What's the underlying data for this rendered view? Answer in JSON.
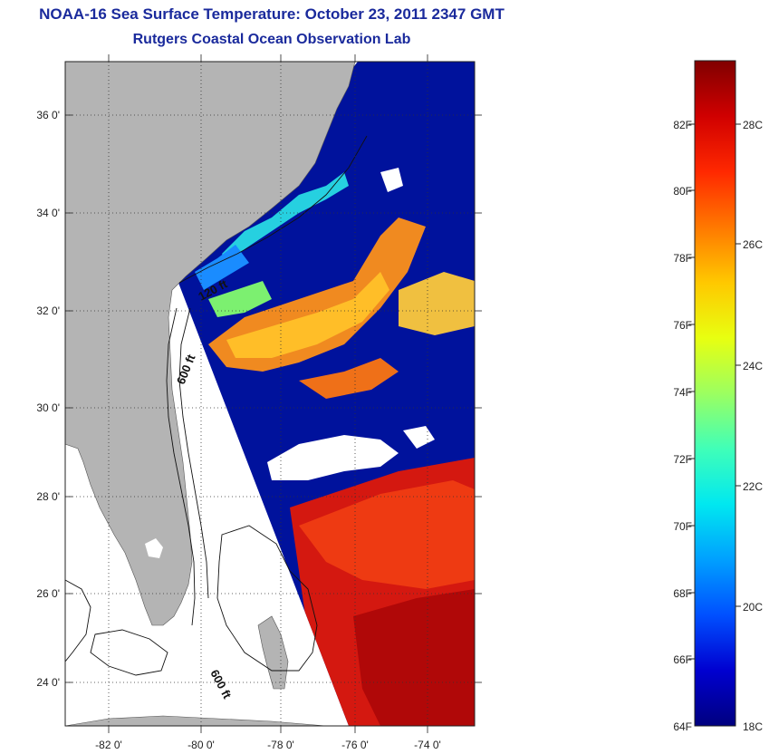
{
  "header": {
    "title": "NOAA-16 Sea Surface Temperature:  October 23, 2011 2347 GMT",
    "subtitle": "Rutgers Coastal Ocean Observation Lab"
  },
  "map": {
    "lon_range": [
      -83.0,
      -72.6
    ],
    "lat_range": [
      23.0,
      37.2
    ],
    "lon_ticks": [
      "-82 0'",
      "-80 0'",
      "-78 0'",
      "-76 0'",
      "-74 0'"
    ],
    "lat_ticks": [
      "36 0'",
      "34 0'",
      "32 0'",
      "30 0'",
      "28 0'",
      "26 0'",
      "24 0'"
    ],
    "contour_labels": [
      "120 ft",
      "600 ft",
      "600 ft"
    ],
    "colors": {
      "land": "#b4b4b4",
      "no_data": "#ffffff",
      "cold_water": "#00129c",
      "warm_water": "#c80c0c",
      "grid": "#333333"
    }
  },
  "colorbar": {
    "min_f": 64,
    "max_f": 84,
    "fahrenheit_ticks": [
      "82F",
      "80F",
      "78F",
      "76F",
      "74F",
      "72F",
      "70F",
      "68F",
      "66F",
      "64F"
    ],
    "celsius_ticks": [
      "28C",
      "26C",
      "24C",
      "22C",
      "20C",
      "18C"
    ],
    "palette": [
      "#00007f",
      "#0000d0",
      "#0050ff",
      "#00a0ff",
      "#00e8f0",
      "#40ffb8",
      "#9cff60",
      "#e8ff10",
      "#ffc800",
      "#ff7800",
      "#ff2800",
      "#d00000",
      "#800000"
    ]
  }
}
